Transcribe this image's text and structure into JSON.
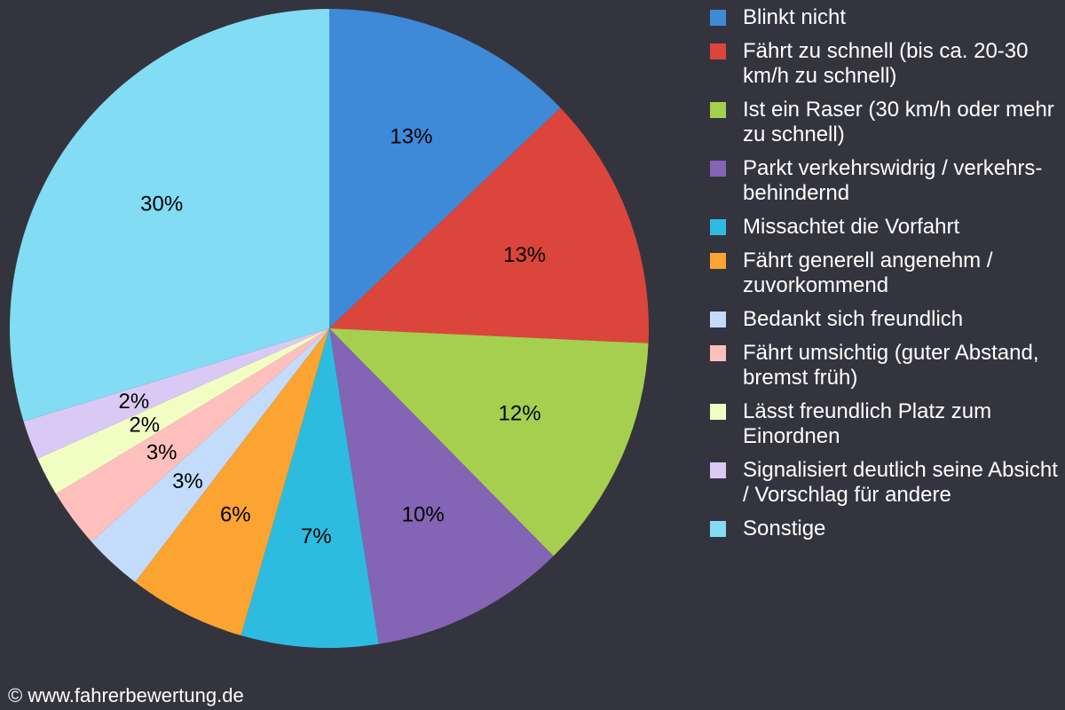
{
  "chart_data": {
    "type": "pie",
    "start_angle_deg": 0,
    "direction": "clockwise",
    "legend_position": "right",
    "slices": [
      {
        "label": "Blinkt nicht",
        "value": 13,
        "value_label": "13%",
        "color": "#3e8ad8"
      },
      {
        "label": "Fährt zu schnell (bis ca. 20-30 km/h zu schnell)",
        "value": 13,
        "value_label": "13%",
        "color": "#dc453b"
      },
      {
        "label": "Ist ein Raser (30 km/h oder mehr zu schnell)",
        "value": 12,
        "value_label": "12%",
        "color": "#a7cf4f"
      },
      {
        "label": "Parkt verkehrswidrig / verkehrs-behindernd",
        "value": 10,
        "value_label": "10%",
        "color": "#8464b4"
      },
      {
        "label": "Missachtet die Vorfahrt",
        "value": 7,
        "value_label": "7%",
        "color": "#2ebbe0"
      },
      {
        "label": "Fährt generell angenehm / zuvorkommend",
        "value": 6,
        "value_label": "6%",
        "color": "#fba432"
      },
      {
        "label": "Bedankt sich freundlich",
        "value": 3,
        "value_label": "3%",
        "color": "#c3dcfb"
      },
      {
        "label": "Fährt umsichtig (guter Abstand, bremst früh)",
        "value": 3,
        "value_label": "3%",
        "color": "#ffc0bd"
      },
      {
        "label": "Lässt freundlich Platz zum Einordnen",
        "value": 2,
        "value_label": "2%",
        "color": "#f2fdc4"
      },
      {
        "label": "Signalisiert deutlich seine Absicht / Vorschlag für andere",
        "value": 2,
        "value_label": "2%",
        "color": "#dbc9f5"
      },
      {
        "label": "Sonstige",
        "value": 30,
        "value_label": "30%",
        "color": "#81dcf4"
      }
    ]
  },
  "footer": {
    "copyright": "© www.fahrerbewertung.de"
  }
}
